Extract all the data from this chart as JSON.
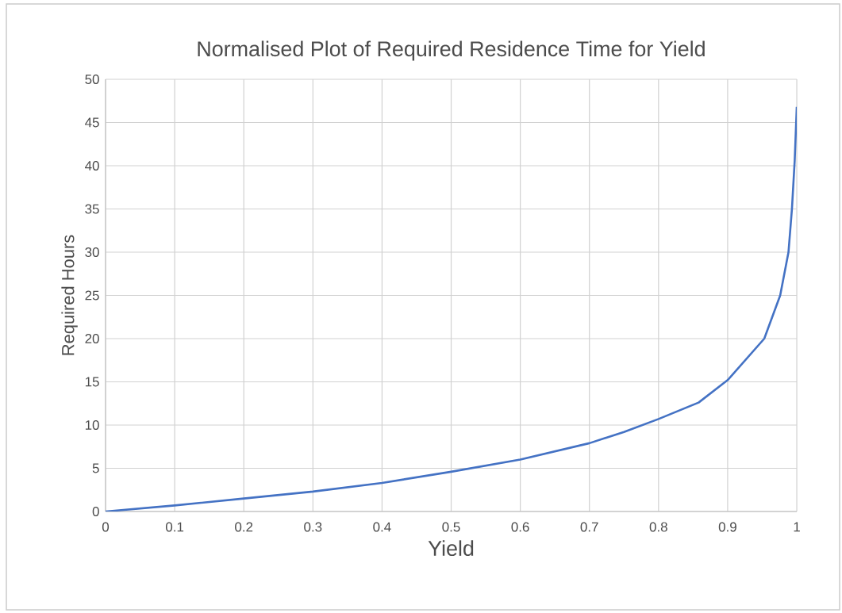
{
  "chart_data": {
    "type": "line",
    "title": "Normalised Plot of Required Residence Time for Yield",
    "xlabel": "Yield",
    "ylabel": "Required Hours",
    "series": [
      {
        "color": "#4472c4",
        "x": [
          0,
          0.1,
          0.2,
          0.3,
          0.4,
          0.5,
          0.6,
          0.7,
          0.75,
          0.8,
          0.858,
          0.9,
          0.953,
          0.976,
          0.988,
          0.993,
          0.997,
          1
        ],
        "values": [
          0,
          0.7,
          1.5,
          2.3,
          3.3,
          4.6,
          6.0,
          7.9,
          9.2,
          10.7,
          12.6,
          15.2,
          20,
          25,
          30,
          35,
          40.6,
          46.8
        ]
      }
    ],
    "xlim": [
      0,
      1
    ],
    "ylim": [
      0,
      50
    ],
    "xticks": [
      0,
      0.1,
      0.2,
      0.3,
      0.4,
      0.5,
      0.6,
      0.7,
      0.8,
      0.9,
      1
    ],
    "yticks": [
      0,
      5,
      10,
      15,
      20,
      25,
      30,
      35,
      40,
      45,
      50
    ],
    "grid": true
  }
}
